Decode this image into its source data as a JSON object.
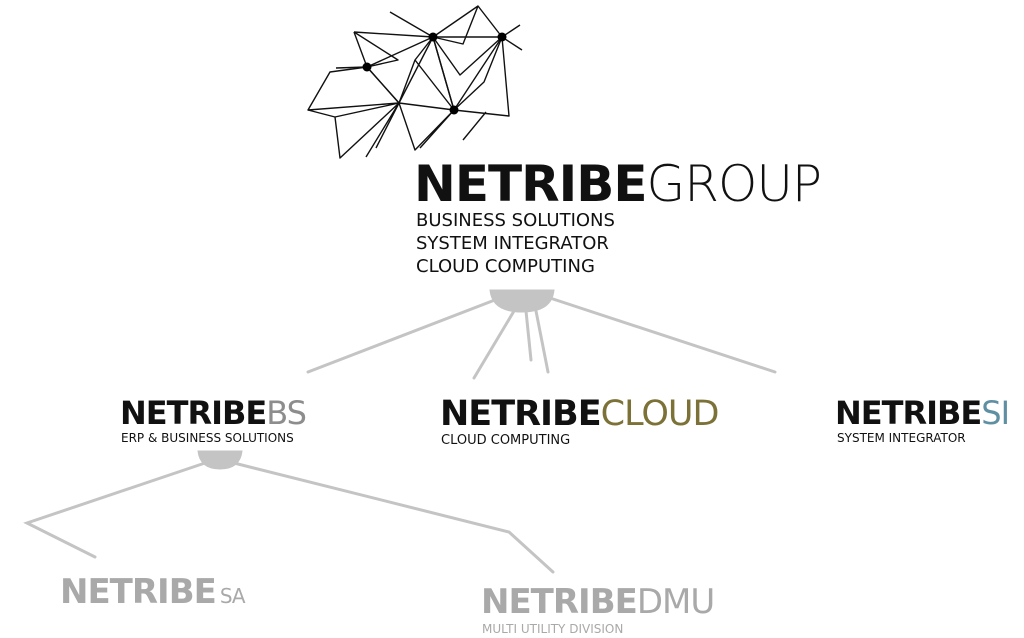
{
  "group": {
    "brand": "NETRIBE",
    "suffix": "GROUP",
    "lines": [
      "BUSINESS SOLUTIONS",
      "SYSTEM INTEGRATOR",
      "CLOUD COMPUTING"
    ]
  },
  "divisions": {
    "bs": {
      "brand": "NETRIBE",
      "suffix": "BS",
      "subtitle": "ERP & BUSINESS SOLUTIONS",
      "suffix_color": "#8d8d8d"
    },
    "cloud": {
      "brand": "NETRIBE",
      "suffix": "CLOUD",
      "subtitle": "CLOUD COMPUTING",
      "suffix_color": "#7c7238"
    },
    "si": {
      "brand": "NETRIBE",
      "suffix": "SI",
      "subtitle": "SYSTEM INTEGRATOR",
      "suffix_color": "#5f8fa3"
    }
  },
  "subdivisions": {
    "sa": {
      "brand": "NETRIBE",
      "suffix": "SA",
      "color": "#a9a9a9"
    },
    "dmu": {
      "brand": "NETRIBE",
      "suffix": "DMU",
      "subtitle": "MULTI UTILITY DIVISION",
      "color": "#a9a9a9"
    }
  },
  "colors": {
    "connector": "#c4c4c4",
    "ink": "#111111"
  },
  "icons": {
    "network": "network-mesh-icon"
  }
}
